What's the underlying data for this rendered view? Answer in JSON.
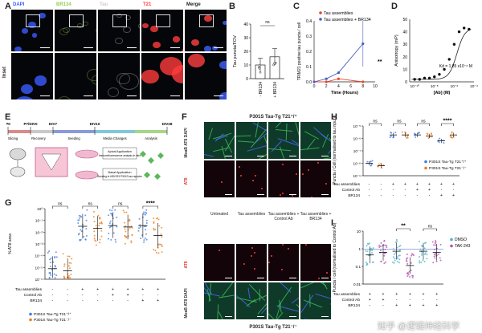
{
  "panels": {
    "A": {
      "letter": "A",
      "channels": [
        "DAPI",
        "BR134",
        "Tau",
        "T21",
        "Merge"
      ],
      "channel_colors": [
        "#3a5bff",
        "#8fd14f",
        "#cccccc",
        "#ff3b3b",
        "#ffffff"
      ],
      "row_label": "Inset"
    },
    "B": {
      "letter": "B",
      "ylabel": "Tau puncta/FOV",
      "sig": "ns",
      "chart_data": {
        "type": "bar",
        "categories": [
          "- BR134",
          "+ BR134"
        ],
        "values": [
          10,
          16
        ],
        "errors": [
          5,
          6
        ],
        "ylim": [
          0,
          40
        ],
        "yticks": [
          "0",
          "10",
          "20",
          "30",
          "40"
        ]
      }
    },
    "C": {
      "letter": "C",
      "ylabel": "TRIM21 positive tau puncta / cell",
      "xlabel": "Time (Hours)",
      "sig": "**",
      "chart_data": {
        "type": "line",
        "series": [
          {
            "name": "Tau assemblies",
            "color": "#e8452c",
            "x": [
              0,
              2,
              4,
              8
            ],
            "y": [
              0,
              0,
              0.02,
              0
            ]
          },
          {
            "name": "Tau assemblies + BR134",
            "color": "#4a5fc1",
            "x": [
              0,
              2,
              4,
              8
            ],
            "y": [
              0,
              0.02,
              0.06,
              0.25
            ]
          }
        ],
        "xlim": [
          0,
          10
        ],
        "ylim": [
          0,
          0.4
        ],
        "xticks": [
          "0",
          "2",
          "4",
          "6",
          "8",
          "10"
        ],
        "yticks": [
          "0.0",
          "0.1",
          "0.2",
          "0.3",
          "0.4"
        ]
      }
    },
    "D": {
      "letter": "D",
      "ylabel": "Anisotropy (mP)",
      "xlabel": "[Ab] (M)",
      "annotation": "Kd = 1.85 x10⁻⁶ M",
      "chart_data": {
        "type": "scatter",
        "x_log": [
          -10,
          -9.5,
          -9,
          -8.5,
          -8,
          -7.5,
          -7,
          -6.5,
          -6,
          -5.5,
          -5,
          -4.5
        ],
        "y": [
          2,
          2,
          3,
          3,
          4,
          6,
          10,
          18,
          30,
          40,
          43,
          42
        ],
        "xticks": [
          "10⁻¹⁰",
          "10⁻⁸",
          "10⁻⁶",
          "10⁻⁴"
        ],
        "yticks": [
          "0",
          "10",
          "20",
          "30",
          "40",
          "50"
        ],
        "ylim": [
          0,
          50
        ]
      }
    },
    "E": {
      "letter": "E",
      "timeline": [
        "P0",
        "P7/DIV0",
        "DIV7",
        "DIV10",
        "DIV28"
      ],
      "phases": [
        "Slicing",
        "Recovery",
        "Seeding",
        "Media Changes",
        "Analysis"
      ],
      "steps": [
        "Apical Application",
        "Immunofluorescence analysis in vitro",
        "Basal Application",
        "Seeding in HEK293 P301S tau reporter"
      ]
    },
    "F": {
      "letter": "F",
      "header_top": "P301S Tau-Tg T21⁺/⁺",
      "header_bottom": "P301S Tau-Tg T21⁻/⁻",
      "row_labels_top": [
        "MoaB AT8 DAPI",
        "AT8"
      ],
      "row_labels_bottom": [
        "AT8",
        "MoaB AT8 DAPI"
      ],
      "columns": [
        "Untreated",
        "Tau assemblies",
        "Tau assemblies + Control Ab",
        "Tau assemblies + BR134"
      ]
    },
    "G": {
      "letter": "G",
      "ylabel": "% AT8 area",
      "sigs": [
        "ns",
        "ns",
        "ns",
        "****"
      ],
      "yticks": [
        "10⁰",
        "10⁻¹",
        "10⁻²",
        "10⁻³",
        "10⁻⁴",
        "10⁻⁵",
        "10⁻⁶"
      ],
      "conditions": {
        "rows": [
          "Tau assemblies",
          "Control Ab",
          "BR134"
        ],
        "values": [
          [
            "-",
            "-",
            "+",
            "+",
            "+",
            "+",
            "+",
            "+"
          ],
          [
            "-",
            "-",
            "-",
            "-",
            "+",
            "+",
            "-",
            "-"
          ],
          [
            "-",
            "-",
            "-",
            "-",
            "-",
            "-",
            "+",
            "+"
          ]
        ]
      },
      "legend": [
        {
          "name": "P301S Tau-Tg T21⁺/⁺",
          "color": "#3f7be0"
        },
        {
          "name": "P301S Tau-Tg T21⁻/⁻",
          "color": "#f07a1a"
        }
      ]
    },
    "H": {
      "letter": "H",
      "ylabel": "Puncta / Cell (normalised to tau input)",
      "sigs": [
        "ns",
        "ns",
        "ns",
        "****"
      ],
      "yticks": [
        "10⁻⁵",
        "10⁻⁶",
        "10⁻⁷",
        "10⁻⁸",
        "10⁻⁹"
      ],
      "conditions": {
        "rows": [
          "Tau assemblies",
          "Control Ab",
          "BR134"
        ],
        "values": [
          [
            "-",
            "-",
            "+",
            "+",
            "+",
            "+",
            "+",
            "+"
          ],
          [
            "-",
            "-",
            "-",
            "-",
            "+",
            "+",
            "-",
            "-"
          ],
          [
            "-",
            "-",
            "-",
            "-",
            "-",
            "-",
            "+",
            "+"
          ]
        ]
      },
      "legend": [
        {
          "name": "P301S Tau-Tg T21⁺/⁺",
          "color": "#3f7be0"
        },
        {
          "name": "P301S Tau-Tg T21⁻/⁻",
          "color": "#f07a1a"
        }
      ]
    },
    "I": {
      "letter": "I",
      "ylabel": "Puncta / cell (normalised to Control Ab)",
      "sigs": [
        "**",
        "ns"
      ],
      "yticks": [
        "10",
        "1",
        "0.1",
        "0.01"
      ],
      "conditions": {
        "rows": [
          "Tau assemblies",
          "Control Ab",
          "BR134"
        ],
        "values": [
          [
            "+",
            "+",
            "+",
            "+",
            "+",
            "+"
          ],
          [
            "+",
            "+",
            "-",
            "-",
            "-",
            "-"
          ],
          [
            "-",
            "-",
            "+",
            "+",
            "+",
            "+"
          ]
        ]
      },
      "legend": [
        {
          "name": "DMSO",
          "color": "#4ab3c9"
        },
        {
          "name": "TAK-243",
          "color": "#b24fb0"
        }
      ]
    }
  },
  "watermark": "知乎 @逻辑神经科学"
}
